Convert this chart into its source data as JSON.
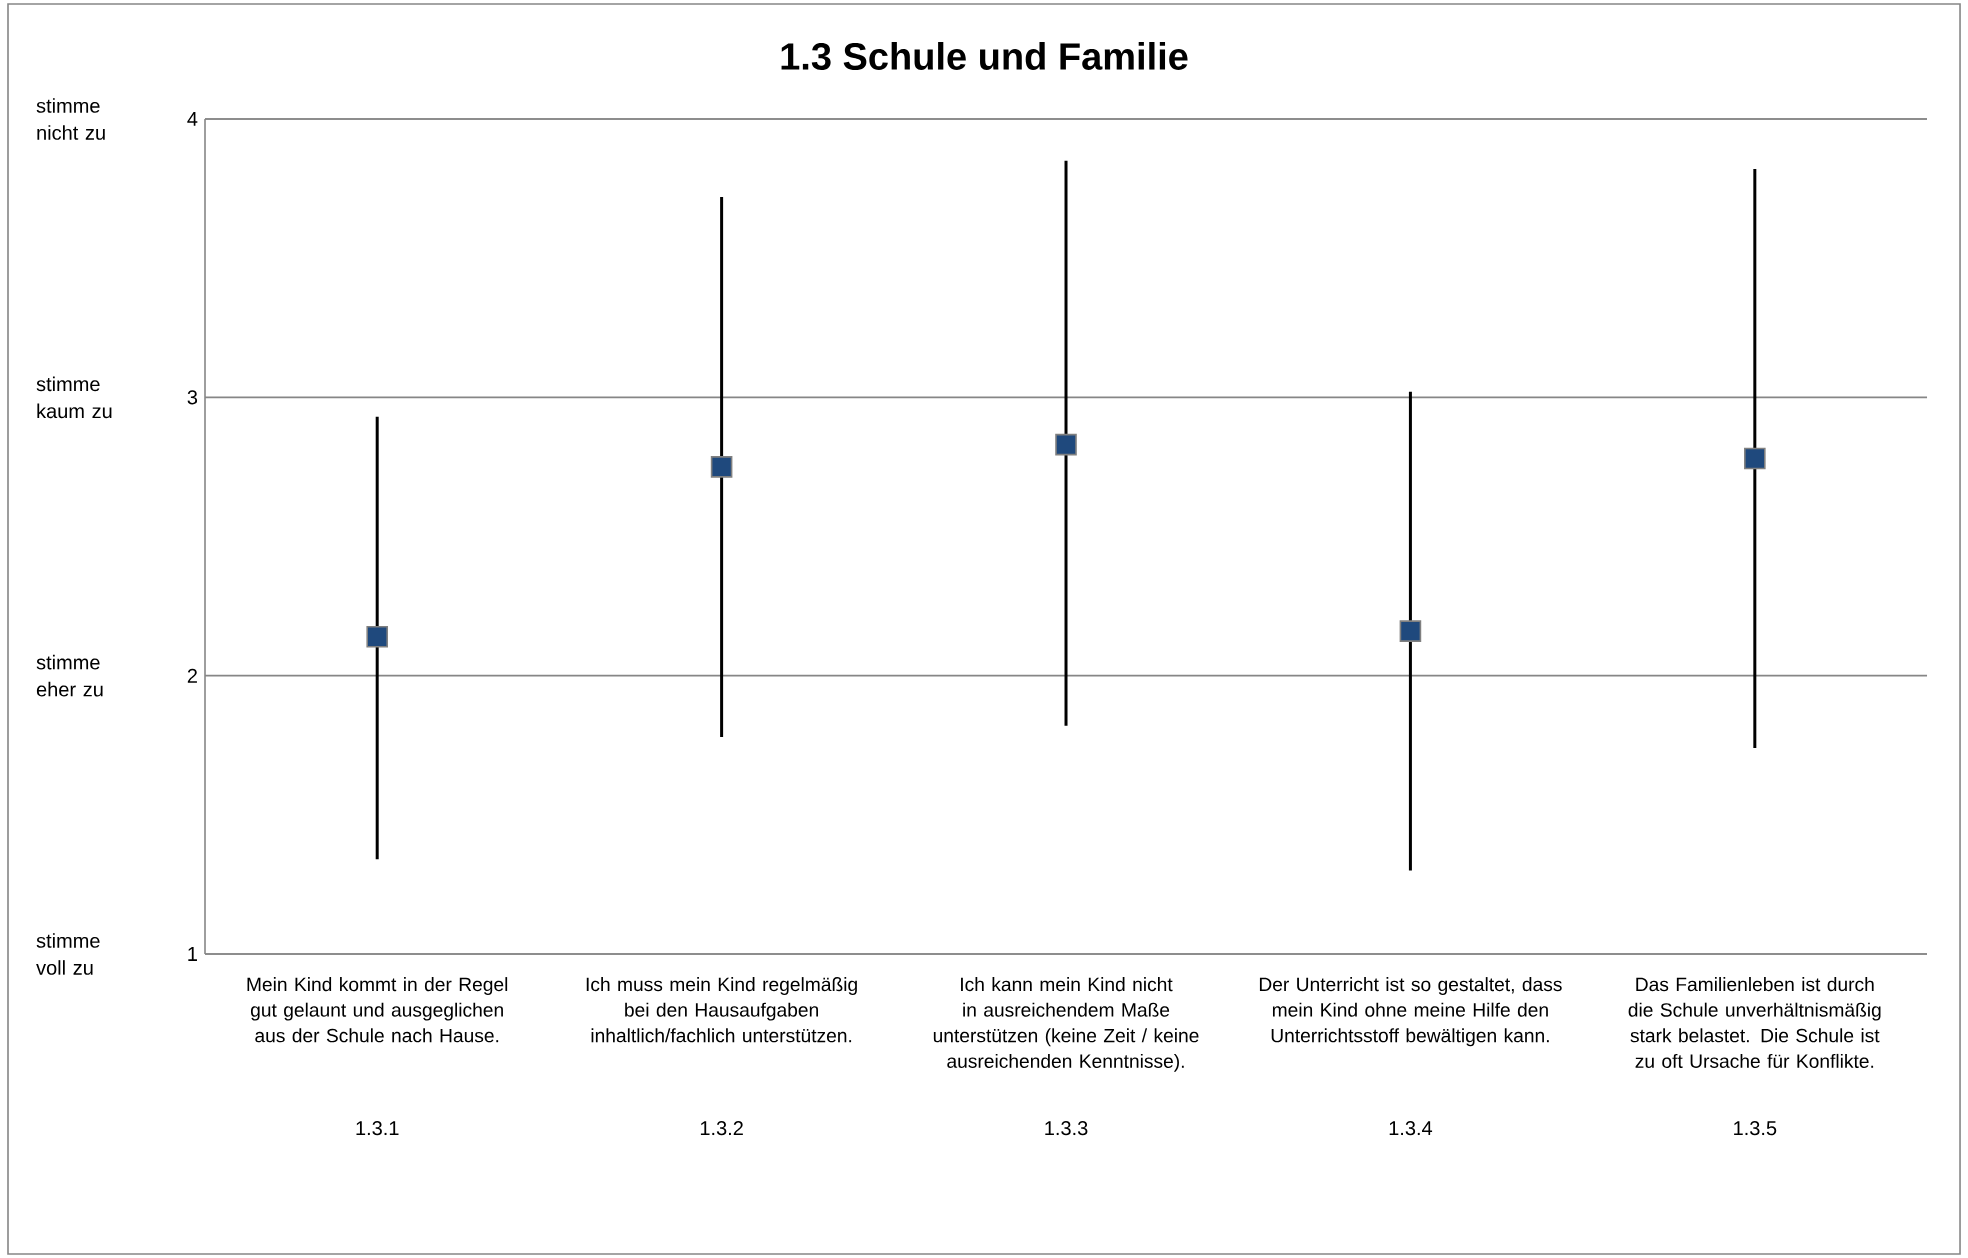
{
  "chart_data": {
    "type": "scatter",
    "title": "1.3 Schule und Familie",
    "categories": [
      "1.3.1",
      "1.3.2",
      "1.3.3",
      "1.3.4",
      "1.3.5"
    ],
    "values": [
      2.14,
      2.75,
      2.83,
      2.16,
      2.78
    ],
    "errors": [
      [
        1.34,
        2.93
      ],
      [
        1.78,
        3.72
      ],
      [
        1.82,
        3.85
      ],
      [
        1.3,
        3.02
      ],
      [
        1.74,
        3.82
      ]
    ],
    "color": "#1f497d",
    "marker": "square",
    "grid": "y",
    "ylim": [
      1,
      4
    ],
    "yticks": [
      1,
      2,
      3,
      4
    ],
    "annotations": [
      "stimme nicht zu",
      "stimme kaum zu",
      "stimme eher zu",
      "stimme voll zu",
      "Mein Kind kommt in der Regel gut gelaunt und ausgeglichen aus der Schule nach Hause.",
      "Ich muss mein Kind regelmäßig bei den Hausaufgaben inhaltlich/fachlich unterstützen.",
      "Ich kann mein Kind nicht in ausreichendem Maße unterstützen (keine Zeit / keine ausreichenden Kenntnisse).",
      "Der Unterricht ist so gestaltet, dass mein Kind ohne meine Hilfe den Unterrichtsstoff bewältigen kann.",
      "Das Familienleben ist durch die Schule  unverhältnismäßig stark belastet. Die Schule ist zu oft Ursache für Konflikte."
    ]
  }
}
